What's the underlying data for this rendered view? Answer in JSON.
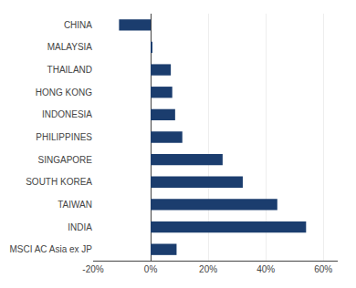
{
  "chart_data": {
    "type": "bar",
    "orientation": "horizontal",
    "categories": [
      "CHINA",
      "MALAYSIA",
      "THAILAND",
      "HONG KONG",
      "INDONESIA",
      "PHILIPPINES",
      "SINGAPORE",
      "SOUTH KOREA",
      "TAIWAN",
      "INDIA",
      "MSCI AC Asia ex JP"
    ],
    "values": [
      -11,
      0.5,
      7,
      7.5,
      8.5,
      11,
      25,
      32,
      44,
      54,
      9
    ],
    "color": "#1b3d6e",
    "xlim": [
      -20,
      65
    ],
    "xticks": [
      {
        "value": -20,
        "label": "-20%"
      },
      {
        "value": 0,
        "label": "0%"
      },
      {
        "value": 20,
        "label": "20%"
      },
      {
        "value": 40,
        "label": "40%"
      },
      {
        "value": 60,
        "label": "60%"
      }
    ],
    "grid": true
  }
}
